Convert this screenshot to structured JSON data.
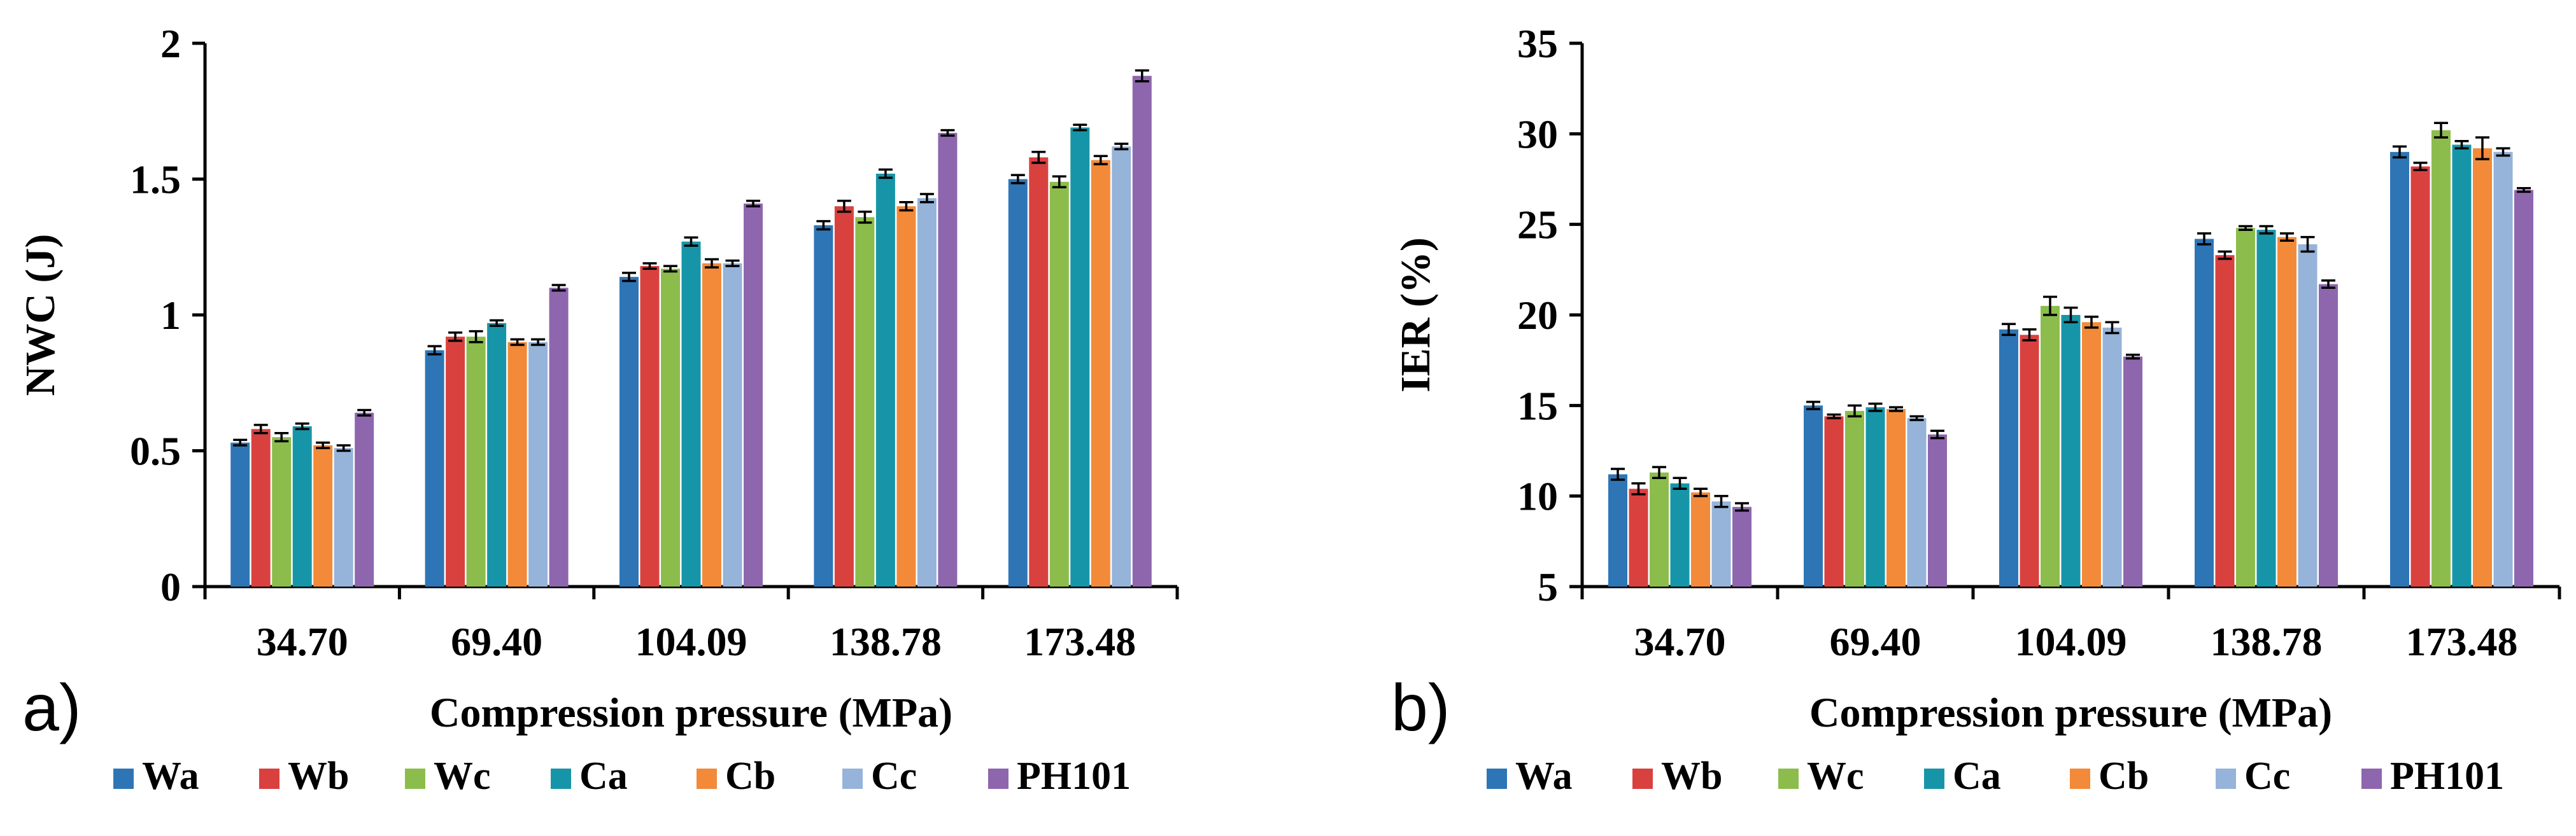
{
  "colors": {
    "Wa": "#2e75b6",
    "Wb": "#d9413f",
    "Wc": "#8cbd4c",
    "Ca": "#1795a8",
    "Cb": "#f28a39",
    "Cc": "#96b3d9",
    "PH101": "#8e66ad"
  },
  "chart_data": [
    {
      "type": "bar",
      "panel_label": "a)",
      "categories": [
        "34.70",
        "69.40",
        "104.09",
        "138.78",
        "173.48"
      ],
      "xlabel": "Compression pressure (MPa)",
      "ylabel": "NWC (J)",
      "ylim": [
        0,
        2
      ],
      "yticks": [
        "0",
        "0.5",
        "1",
        "1.5",
        "2"
      ],
      "grid": false,
      "legend_position": "bottom",
      "error_bars": true,
      "series": [
        {
          "name": "Wa",
          "values": [
            0.53,
            0.87,
            1.14,
            1.33,
            1.5
          ],
          "errors": [
            0.01,
            0.015,
            0.015,
            0.015,
            0.015
          ]
        },
        {
          "name": "Wb",
          "values": [
            0.58,
            0.92,
            1.18,
            1.4,
            1.58
          ],
          "errors": [
            0.015,
            0.015,
            0.01,
            0.02,
            0.02
          ]
        },
        {
          "name": "Wc",
          "values": [
            0.55,
            0.92,
            1.17,
            1.36,
            1.49
          ],
          "errors": [
            0.015,
            0.02,
            0.01,
            0.02,
            0.02
          ]
        },
        {
          "name": "Ca",
          "values": [
            0.59,
            0.97,
            1.27,
            1.52,
            1.69
          ],
          "errors": [
            0.01,
            0.01,
            0.015,
            0.015,
            0.01
          ]
        },
        {
          "name": "Cb",
          "values": [
            0.52,
            0.9,
            1.19,
            1.4,
            1.57
          ],
          "errors": [
            0.01,
            0.01,
            0.015,
            0.015,
            0.015
          ]
        },
        {
          "name": "Cc",
          "values": [
            0.51,
            0.9,
            1.19,
            1.43,
            1.62
          ],
          "errors": [
            0.01,
            0.01,
            0.01,
            0.015,
            0.01
          ]
        },
        {
          "name": "PH101",
          "values": [
            0.64,
            1.1,
            1.41,
            1.67,
            1.88
          ],
          "errors": [
            0.01,
            0.01,
            0.01,
            0.01,
            0.02
          ]
        }
      ]
    },
    {
      "type": "bar",
      "panel_label": "b)",
      "categories": [
        "34.70",
        "69.40",
        "104.09",
        "138.78",
        "173.48"
      ],
      "xlabel": "Compression pressure (MPa)",
      "ylabel": "IER (%)",
      "ylim": [
        5,
        35
      ],
      "yticks": [
        "5",
        "10",
        "15",
        "20",
        "25",
        "30",
        "35"
      ],
      "grid": false,
      "legend_position": "bottom",
      "error_bars": true,
      "series": [
        {
          "name": "Wa",
          "values": [
            11.2,
            15.0,
            19.2,
            24.2,
            29.0
          ],
          "errors": [
            0.3,
            0.2,
            0.3,
            0.3,
            0.3
          ]
        },
        {
          "name": "Wb",
          "values": [
            10.4,
            14.4,
            18.9,
            23.3,
            28.2
          ],
          "errors": [
            0.3,
            0.1,
            0.3,
            0.2,
            0.2
          ]
        },
        {
          "name": "Wc",
          "values": [
            11.3,
            14.7,
            20.5,
            24.8,
            30.2
          ],
          "errors": [
            0.3,
            0.3,
            0.5,
            0.1,
            0.4
          ]
        },
        {
          "name": "Ca",
          "values": [
            10.7,
            14.9,
            20.0,
            24.7,
            29.4
          ],
          "errors": [
            0.3,
            0.2,
            0.4,
            0.2,
            0.2
          ]
        },
        {
          "name": "Cb",
          "values": [
            10.2,
            14.8,
            19.6,
            24.3,
            29.2
          ],
          "errors": [
            0.2,
            0.1,
            0.3,
            0.2,
            0.6
          ]
        },
        {
          "name": "Cc",
          "values": [
            9.7,
            14.3,
            19.3,
            23.9,
            29.0
          ],
          "errors": [
            0.3,
            0.1,
            0.3,
            0.4,
            0.2
          ]
        },
        {
          "name": "PH101",
          "values": [
            9.4,
            13.4,
            17.7,
            21.7,
            26.9
          ],
          "errors": [
            0.2,
            0.2,
            0.1,
            0.2,
            0.1
          ]
        }
      ]
    }
  ]
}
